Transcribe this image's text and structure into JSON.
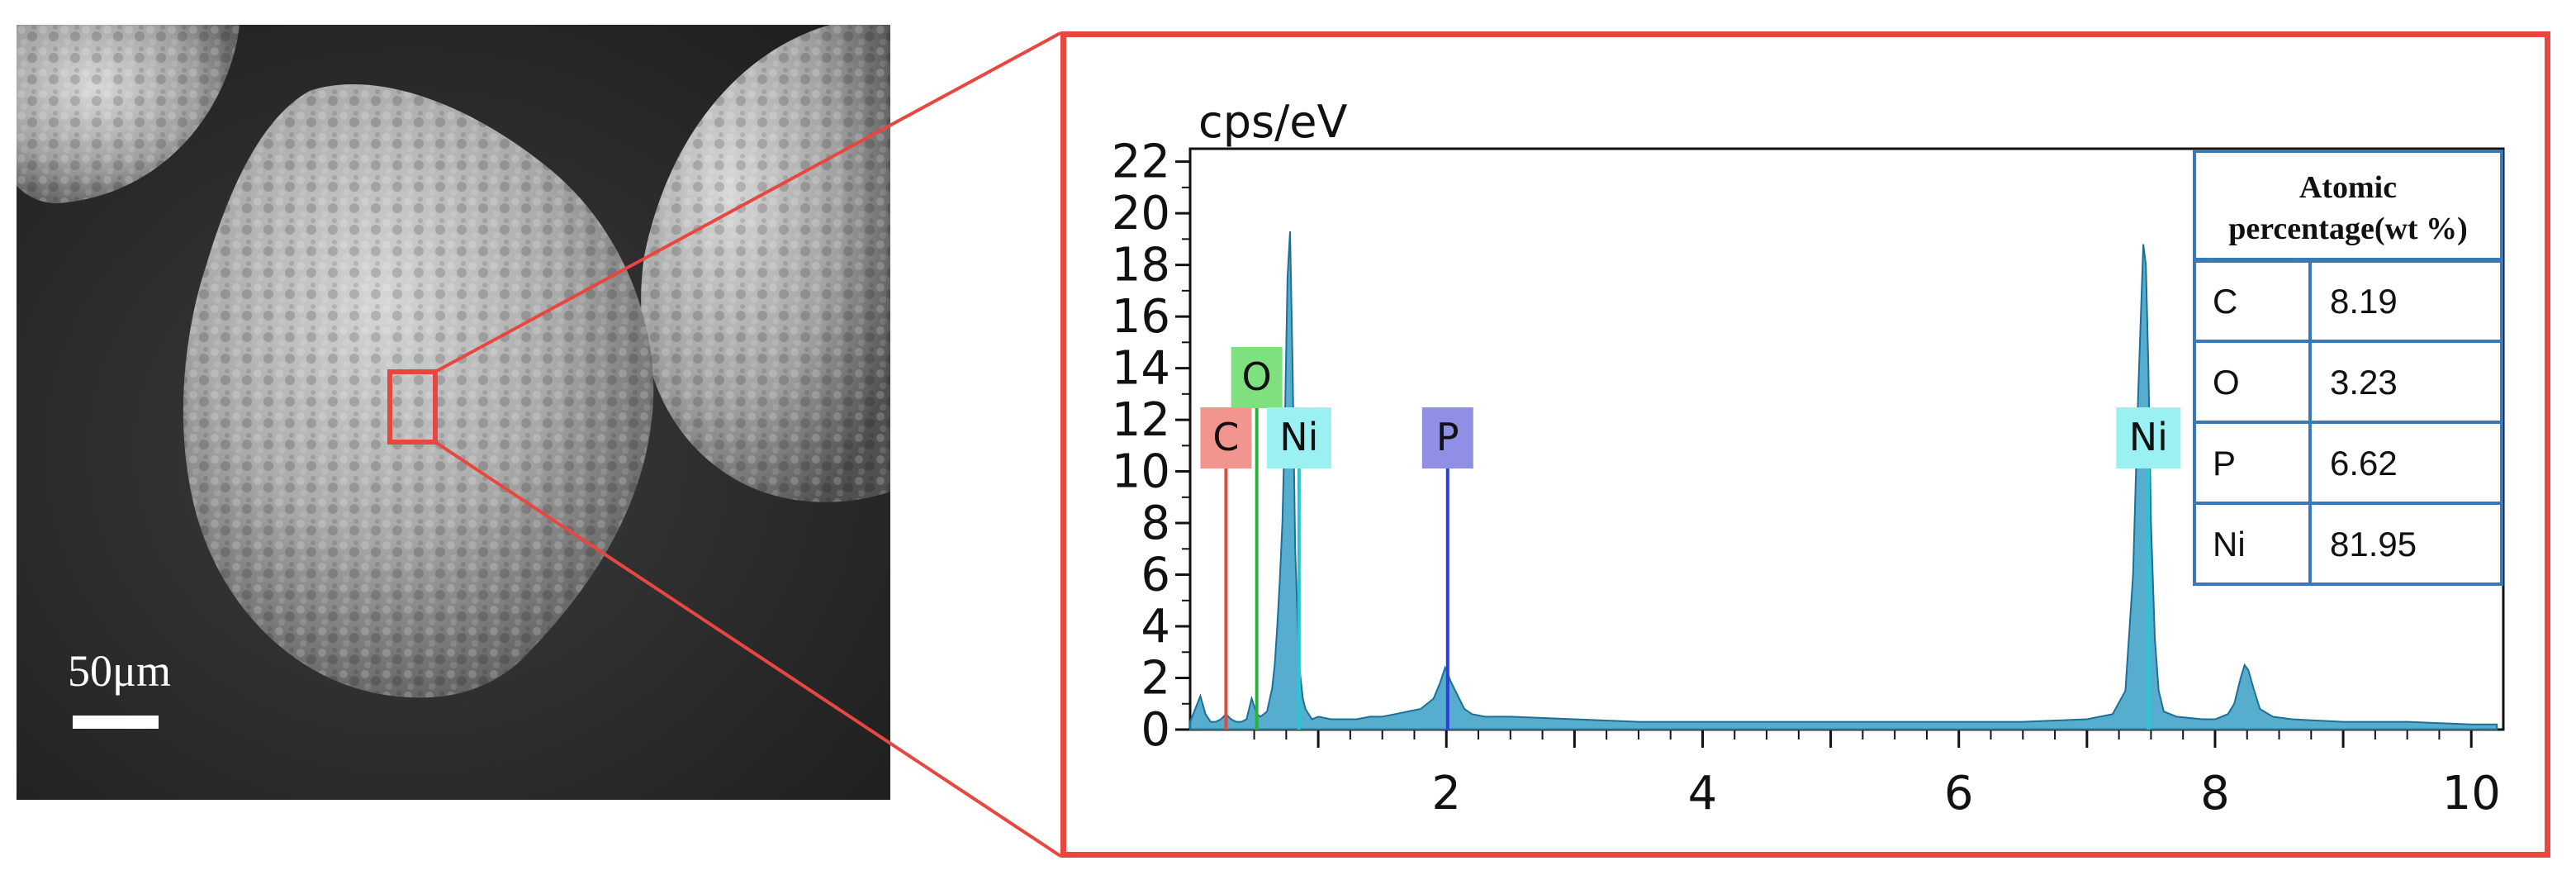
{
  "sem": {
    "scale_bar_label": "50μm"
  },
  "chart_data": {
    "type": "line",
    "title": "",
    "xlabel": "",
    "ylabel": "cps/eV",
    "xlim": [
      0,
      10.25
    ],
    "ylim": [
      0,
      22.5
    ],
    "x_ticks": [
      2,
      4,
      6,
      8,
      10
    ],
    "y_ticks": [
      0,
      2,
      4,
      6,
      8,
      10,
      12,
      14,
      16,
      18,
      20,
      22
    ],
    "grid": false,
    "series": [
      {
        "color": "#3a9fc6",
        "x": [
          0.0,
          0.04,
          0.08,
          0.12,
          0.16,
          0.2,
          0.24,
          0.28,
          0.32,
          0.36,
          0.4,
          0.44,
          0.48,
          0.52,
          0.55,
          0.6,
          0.64,
          0.66,
          0.68,
          0.7,
          0.72,
          0.74,
          0.76,
          0.78,
          0.8,
          0.82,
          0.85,
          0.88,
          0.9,
          0.95,
          1.0,
          1.1,
          1.2,
          1.3,
          1.4,
          1.5,
          1.6,
          1.7,
          1.8,
          1.9,
          1.95,
          1.99,
          2.01,
          2.03,
          2.06,
          2.1,
          2.14,
          2.2,
          2.3,
          2.5,
          3.0,
          3.5,
          4.0,
          4.5,
          5.0,
          5.5,
          6.0,
          6.5,
          7.0,
          7.2,
          7.3,
          7.36,
          7.4,
          7.44,
          7.46,
          7.48,
          7.5,
          7.53,
          7.56,
          7.6,
          7.7,
          7.9,
          8.0,
          8.1,
          8.15,
          8.2,
          8.23,
          8.26,
          8.3,
          8.35,
          8.45,
          8.6,
          9.0,
          9.5,
          10.0,
          10.2
        ],
        "y": [
          0.3,
          0.8,
          1.3,
          0.6,
          0.3,
          0.3,
          0.4,
          0.6,
          0.4,
          0.3,
          0.3,
          0.4,
          1.2,
          0.6,
          0.5,
          0.7,
          1.6,
          2.5,
          4.0,
          5.8,
          8.0,
          12.0,
          17.5,
          19.3,
          14.0,
          7.0,
          2.5,
          1.2,
          0.8,
          0.4,
          0.5,
          0.4,
          0.4,
          0.4,
          0.5,
          0.5,
          0.6,
          0.7,
          0.8,
          1.2,
          1.8,
          2.4,
          2.2,
          1.9,
          1.6,
          1.2,
          0.8,
          0.6,
          0.5,
          0.5,
          0.4,
          0.3,
          0.3,
          0.3,
          0.3,
          0.3,
          0.3,
          0.3,
          0.4,
          0.6,
          1.5,
          6.0,
          13.0,
          18.8,
          18.0,
          14.0,
          8.0,
          3.5,
          1.5,
          0.7,
          0.5,
          0.4,
          0.4,
          0.6,
          1.0,
          2.0,
          2.5,
          2.3,
          1.6,
          0.8,
          0.5,
          0.4,
          0.3,
          0.3,
          0.2,
          0.2
        ]
      }
    ],
    "element_markers": [
      {
        "label": "C",
        "energy": 0.28,
        "peak": 9.0,
        "box_color": "#f2958e",
        "line_color": "#e04a40",
        "row": 1
      },
      {
        "label": "O",
        "energy": 0.52,
        "peak": 11.2,
        "box_color": "#7fe07f",
        "line_color": "#2bb23a",
        "row": 0
      },
      {
        "label": "Ni",
        "energy": 0.85,
        "peak": 9.0,
        "box_color": "#9bf0f2",
        "line_color": "#2ac6d6",
        "row": 1
      },
      {
        "label": "P",
        "energy": 2.01,
        "peak": 8.0,
        "box_color": "#8f8fe6",
        "line_color": "#2c3fd8",
        "row": 1
      },
      {
        "label": "Ni",
        "energy": 7.48,
        "peak": 9.0,
        "box_color": "#9bf0f2",
        "line_color": "#2ac6d6",
        "row": 1
      }
    ],
    "table": {
      "header": "Atomic percentage(wt %)",
      "header_lines": [
        "Atomic",
        "percentage(wt %)"
      ],
      "rows": [
        {
          "element": "C",
          "value": "8.19"
        },
        {
          "element": "O",
          "value": "3.23"
        },
        {
          "element": "P",
          "value": "6.62"
        },
        {
          "element": "Ni",
          "value": "81.95"
        }
      ]
    }
  },
  "colors": {
    "highlight_red": "#e8473f",
    "table_border": "#3b78b8",
    "spectrum_fill": "#3a9fc6"
  }
}
